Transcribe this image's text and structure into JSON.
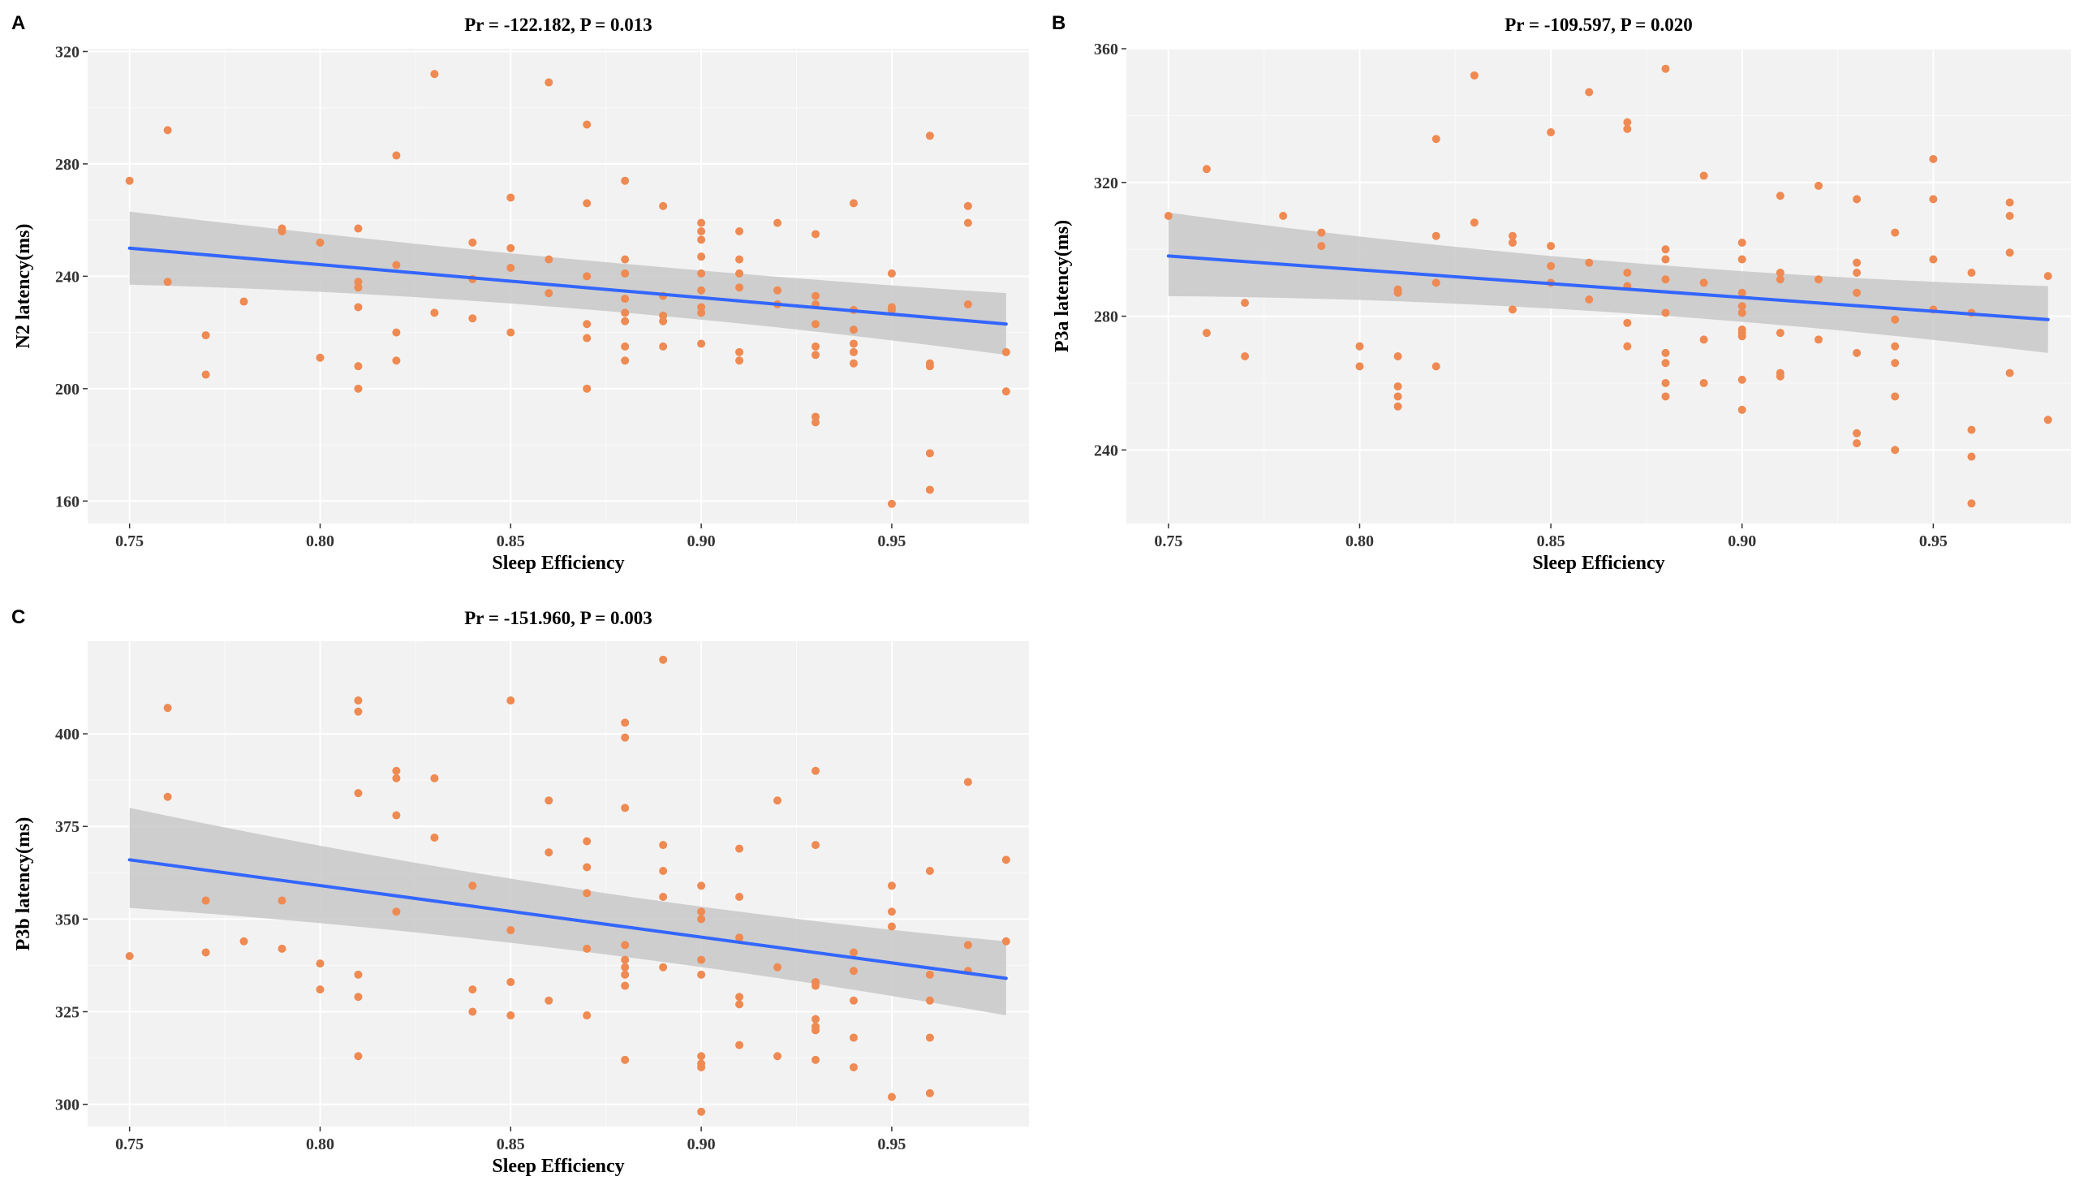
{
  "colors": {
    "panel_bg": "#f2f2f2",
    "grid_major": "#ffffff",
    "grid_minor": "#fafafa",
    "point": "#ee8a52",
    "line": "#3366ff",
    "ribbon": "#c8c8c8"
  },
  "chart_data": [
    {
      "id": "A",
      "panel_label": "A",
      "type": "scatter",
      "title": "Pr = -122.182, P = 0.013",
      "xlabel": "Sleep Efficiency",
      "ylabel": "N2 latency(ms)",
      "xlim": [
        0.739,
        0.986
      ],
      "ylim": [
        152,
        321
      ],
      "x_ticks": [
        0.75,
        0.8,
        0.85,
        0.9,
        0.95
      ],
      "x_tick_labels": [
        "0.75",
        "0.80",
        "0.85",
        "0.90",
        "0.95"
      ],
      "y_ticks": [
        160,
        200,
        240,
        280,
        320
      ],
      "y_tick_labels": [
        "160",
        "200",
        "240",
        "280",
        "320"
      ],
      "fit": {
        "x": [
          0.75,
          0.98
        ],
        "y": [
          250,
          223
        ],
        "ci_upper": [
          263,
          234
        ],
        "ci_lower": [
          237,
          212
        ],
        "ci_mid_upper": 244,
        "ci_mid_lower": 233
      },
      "points": [
        [
          0.75,
          274
        ],
        [
          0.76,
          292
        ],
        [
          0.76,
          238
        ],
        [
          0.77,
          219
        ],
        [
          0.77,
          205
        ],
        [
          0.78,
          231
        ],
        [
          0.79,
          257
        ],
        [
          0.79,
          256
        ],
        [
          0.8,
          252
        ],
        [
          0.8,
          211
        ],
        [
          0.81,
          257
        ],
        [
          0.81,
          238
        ],
        [
          0.81,
          236
        ],
        [
          0.81,
          229
        ],
        [
          0.81,
          208
        ],
        [
          0.81,
          200
        ],
        [
          0.82,
          283
        ],
        [
          0.82,
          244
        ],
        [
          0.82,
          220
        ],
        [
          0.82,
          210
        ],
        [
          0.83,
          312
        ],
        [
          0.83,
          227
        ],
        [
          0.84,
          252
        ],
        [
          0.84,
          239
        ],
        [
          0.84,
          225
        ],
        [
          0.85,
          268
        ],
        [
          0.85,
          250
        ],
        [
          0.85,
          243
        ],
        [
          0.85,
          220
        ],
        [
          0.86,
          309
        ],
        [
          0.86,
          246
        ],
        [
          0.86,
          234
        ],
        [
          0.87,
          294
        ],
        [
          0.87,
          266
        ],
        [
          0.87,
          240
        ],
        [
          0.87,
          223
        ],
        [
          0.87,
          218
        ],
        [
          0.87,
          200
        ],
        [
          0.88,
          274
        ],
        [
          0.88,
          246
        ],
        [
          0.88,
          241
        ],
        [
          0.88,
          232
        ],
        [
          0.88,
          227
        ],
        [
          0.88,
          224
        ],
        [
          0.88,
          215
        ],
        [
          0.88,
          210
        ],
        [
          0.89,
          265
        ],
        [
          0.89,
          233
        ],
        [
          0.89,
          226
        ],
        [
          0.89,
          224
        ],
        [
          0.89,
          215
        ],
        [
          0.9,
          259
        ],
        [
          0.9,
          256
        ],
        [
          0.9,
          253
        ],
        [
          0.9,
          247
        ],
        [
          0.9,
          241
        ],
        [
          0.9,
          235
        ],
        [
          0.9,
          229
        ],
        [
          0.9,
          227
        ],
        [
          0.9,
          216
        ],
        [
          0.91,
          256
        ],
        [
          0.91,
          246
        ],
        [
          0.91,
          241
        ],
        [
          0.91,
          236
        ],
        [
          0.91,
          213
        ],
        [
          0.91,
          210
        ],
        [
          0.92,
          259
        ],
        [
          0.92,
          235
        ],
        [
          0.92,
          230
        ],
        [
          0.93,
          255
        ],
        [
          0.93,
          233
        ],
        [
          0.93,
          230
        ],
        [
          0.93,
          223
        ],
        [
          0.93,
          215
        ],
        [
          0.93,
          212
        ],
        [
          0.93,
          190
        ],
        [
          0.93,
          188
        ],
        [
          0.94,
          266
        ],
        [
          0.94,
          228
        ],
        [
          0.94,
          221
        ],
        [
          0.94,
          216
        ],
        [
          0.94,
          213
        ],
        [
          0.94,
          209
        ],
        [
          0.95,
          241
        ],
        [
          0.95,
          229
        ],
        [
          0.95,
          228
        ],
        [
          0.95,
          159
        ],
        [
          0.96,
          290
        ],
        [
          0.96,
          209
        ],
        [
          0.96,
          208
        ],
        [
          0.96,
          177
        ],
        [
          0.96,
          164
        ],
        [
          0.97,
          265
        ],
        [
          0.97,
          259
        ],
        [
          0.97,
          230
        ],
        [
          0.98,
          213
        ],
        [
          0.98,
          199
        ]
      ]
    },
    {
      "id": "B",
      "panel_label": "B",
      "type": "scatter",
      "title": "Pr = -109.597, P = 0.020",
      "xlabel": "Sleep Efficiency",
      "ylabel": "P3a latency(ms)",
      "xlim": [
        0.739,
        0.986
      ],
      "ylim": [
        218,
        360
      ],
      "x_ticks": [
        0.75,
        0.8,
        0.85,
        0.9,
        0.95
      ],
      "x_tick_labels": [
        "0.75",
        "0.80",
        "0.85",
        "0.90",
        "0.95"
      ],
      "y_ticks": [
        240,
        280,
        320,
        360
      ],
      "y_tick_labels": [
        "240",
        "280",
        "320",
        "360"
      ],
      "fit": {
        "x": [
          0.75,
          0.98
        ],
        "y": [
          298,
          279
        ],
        "ci_upper": [
          311,
          289
        ],
        "ci_lower": [
          286,
          269
        ],
        "ci_mid_upper": 293,
        "ci_mid_lower": 285
      },
      "points": [
        [
          0.75,
          310
        ],
        [
          0.76,
          324
        ],
        [
          0.76,
          275
        ],
        [
          0.77,
          284
        ],
        [
          0.77,
          268
        ],
        [
          0.78,
          310
        ],
        [
          0.79,
          305
        ],
        [
          0.79,
          301
        ],
        [
          0.8,
          271
        ],
        [
          0.8,
          265
        ],
        [
          0.81,
          288
        ],
        [
          0.81,
          287
        ],
        [
          0.81,
          268
        ],
        [
          0.81,
          259
        ],
        [
          0.81,
          256
        ],
        [
          0.81,
          253
        ],
        [
          0.82,
          333
        ],
        [
          0.82,
          304
        ],
        [
          0.82,
          290
        ],
        [
          0.82,
          265
        ],
        [
          0.83,
          352
        ],
        [
          0.83,
          308
        ],
        [
          0.84,
          304
        ],
        [
          0.84,
          302
        ],
        [
          0.84,
          282
        ],
        [
          0.85,
          335
        ],
        [
          0.85,
          301
        ],
        [
          0.85,
          295
        ],
        [
          0.85,
          290
        ],
        [
          0.86,
          347
        ],
        [
          0.86,
          296
        ],
        [
          0.86,
          285
        ],
        [
          0.87,
          338
        ],
        [
          0.87,
          336
        ],
        [
          0.87,
          293
        ],
        [
          0.87,
          289
        ],
        [
          0.87,
          278
        ],
        [
          0.87,
          271
        ],
        [
          0.88,
          354
        ],
        [
          0.88,
          300
        ],
        [
          0.88,
          297
        ],
        [
          0.88,
          291
        ],
        [
          0.88,
          281
        ],
        [
          0.88,
          269
        ],
        [
          0.88,
          266
        ],
        [
          0.88,
          260
        ],
        [
          0.88,
          256
        ],
        [
          0.89,
          322
        ],
        [
          0.89,
          290
        ],
        [
          0.89,
          273
        ],
        [
          0.89,
          260
        ],
        [
          0.9,
          302
        ],
        [
          0.9,
          297
        ],
        [
          0.9,
          287
        ],
        [
          0.9,
          283
        ],
        [
          0.9,
          281
        ],
        [
          0.9,
          276
        ],
        [
          0.9,
          275
        ],
        [
          0.9,
          274
        ],
        [
          0.9,
          261
        ],
        [
          0.9,
          252
        ],
        [
          0.91,
          316
        ],
        [
          0.91,
          293
        ],
        [
          0.91,
          291
        ],
        [
          0.91,
          275
        ],
        [
          0.91,
          263
        ],
        [
          0.91,
          262
        ],
        [
          0.92,
          319
        ],
        [
          0.92,
          291
        ],
        [
          0.92,
          273
        ],
        [
          0.93,
          315
        ],
        [
          0.93,
          296
        ],
        [
          0.93,
          293
        ],
        [
          0.93,
          287
        ],
        [
          0.93,
          269
        ],
        [
          0.93,
          245
        ],
        [
          0.93,
          242
        ],
        [
          0.94,
          305
        ],
        [
          0.94,
          279
        ],
        [
          0.94,
          271
        ],
        [
          0.94,
          266
        ],
        [
          0.94,
          256
        ],
        [
          0.94,
          240
        ],
        [
          0.95,
          327
        ],
        [
          0.95,
          315
        ],
        [
          0.95,
          297
        ],
        [
          0.95,
          282
        ],
        [
          0.96,
          293
        ],
        [
          0.96,
          281
        ],
        [
          0.96,
          246
        ],
        [
          0.96,
          238
        ],
        [
          0.96,
          224
        ],
        [
          0.97,
          314
        ],
        [
          0.97,
          310
        ],
        [
          0.97,
          299
        ],
        [
          0.97,
          263
        ],
        [
          0.98,
          292
        ],
        [
          0.98,
          249
        ]
      ]
    },
    {
      "id": "C",
      "panel_label": "C",
      "type": "scatter",
      "title": "Pr = -151.960, P = 0.003",
      "xlabel": "Sleep Efficiency",
      "ylabel": "P3b latency(ms)",
      "xlim": [
        0.739,
        0.986
      ],
      "ylim": [
        294,
        425
      ],
      "x_ticks": [
        0.75,
        0.8,
        0.85,
        0.9,
        0.95
      ],
      "x_tick_labels": [
        "0.75",
        "0.80",
        "0.85",
        "0.90",
        "0.95"
      ],
      "y_ticks": [
        300,
        325,
        350,
        375,
        400
      ],
      "y_tick_labels": [
        "300",
        "325",
        "350",
        "375",
        "400"
      ],
      "fit": {
        "x": [
          0.75,
          0.98
        ],
        "y": [
          366,
          334
        ],
        "ci_upper": [
          380,
          344
        ],
        "ci_lower": [
          353,
          324
        ],
        "ci_mid_upper": 355,
        "ci_mid_lower": 345
      },
      "points": [
        [
          0.75,
          340
        ],
        [
          0.76,
          407
        ],
        [
          0.76,
          383
        ],
        [
          0.77,
          355
        ],
        [
          0.77,
          341
        ],
        [
          0.78,
          344
        ],
        [
          0.79,
          355
        ],
        [
          0.79,
          342
        ],
        [
          0.8,
          338
        ],
        [
          0.8,
          331
        ],
        [
          0.81,
          409
        ],
        [
          0.81,
          406
        ],
        [
          0.81,
          384
        ],
        [
          0.81,
          335
        ],
        [
          0.81,
          329
        ],
        [
          0.81,
          313
        ],
        [
          0.82,
          390
        ],
        [
          0.82,
          388
        ],
        [
          0.82,
          378
        ],
        [
          0.82,
          352
        ],
        [
          0.83,
          388
        ],
        [
          0.83,
          372
        ],
        [
          0.84,
          359
        ],
        [
          0.84,
          331
        ],
        [
          0.84,
          325
        ],
        [
          0.85,
          409
        ],
        [
          0.85,
          347
        ],
        [
          0.85,
          333
        ],
        [
          0.85,
          324
        ],
        [
          0.86,
          382
        ],
        [
          0.86,
          368
        ],
        [
          0.86,
          328
        ],
        [
          0.87,
          371
        ],
        [
          0.87,
          364
        ],
        [
          0.87,
          357
        ],
        [
          0.87,
          342
        ],
        [
          0.87,
          324
        ],
        [
          0.88,
          403
        ],
        [
          0.88,
          399
        ],
        [
          0.88,
          380
        ],
        [
          0.88,
          343
        ],
        [
          0.88,
          339
        ],
        [
          0.88,
          337
        ],
        [
          0.88,
          335
        ],
        [
          0.88,
          332
        ],
        [
          0.88,
          312
        ],
        [
          0.89,
          420
        ],
        [
          0.89,
          370
        ],
        [
          0.89,
          363
        ],
        [
          0.89,
          356
        ],
        [
          0.89,
          337
        ],
        [
          0.9,
          359
        ],
        [
          0.9,
          352
        ],
        [
          0.9,
          350
        ],
        [
          0.9,
          339
        ],
        [
          0.9,
          335
        ],
        [
          0.9,
          313
        ],
        [
          0.9,
          311
        ],
        [
          0.9,
          310
        ],
        [
          0.9,
          298
        ],
        [
          0.91,
          369
        ],
        [
          0.91,
          356
        ],
        [
          0.91,
          345
        ],
        [
          0.91,
          329
        ],
        [
          0.91,
          327
        ],
        [
          0.91,
          316
        ],
        [
          0.92,
          382
        ],
        [
          0.92,
          337
        ],
        [
          0.92,
          313
        ],
        [
          0.93,
          390
        ],
        [
          0.93,
          370
        ],
        [
          0.93,
          333
        ],
        [
          0.93,
          332
        ],
        [
          0.93,
          323
        ],
        [
          0.93,
          321
        ],
        [
          0.93,
          320
        ],
        [
          0.93,
          312
        ],
        [
          0.94,
          341
        ],
        [
          0.94,
          336
        ],
        [
          0.94,
          328
        ],
        [
          0.94,
          318
        ],
        [
          0.94,
          310
        ],
        [
          0.95,
          359
        ],
        [
          0.95,
          352
        ],
        [
          0.95,
          348
        ],
        [
          0.95,
          302
        ],
        [
          0.96,
          363
        ],
        [
          0.96,
          335
        ],
        [
          0.96,
          328
        ],
        [
          0.96,
          318
        ],
        [
          0.96,
          303
        ],
        [
          0.97,
          387
        ],
        [
          0.97,
          343
        ],
        [
          0.97,
          336
        ],
        [
          0.98,
          366
        ],
        [
          0.98,
          344
        ]
      ]
    }
  ]
}
